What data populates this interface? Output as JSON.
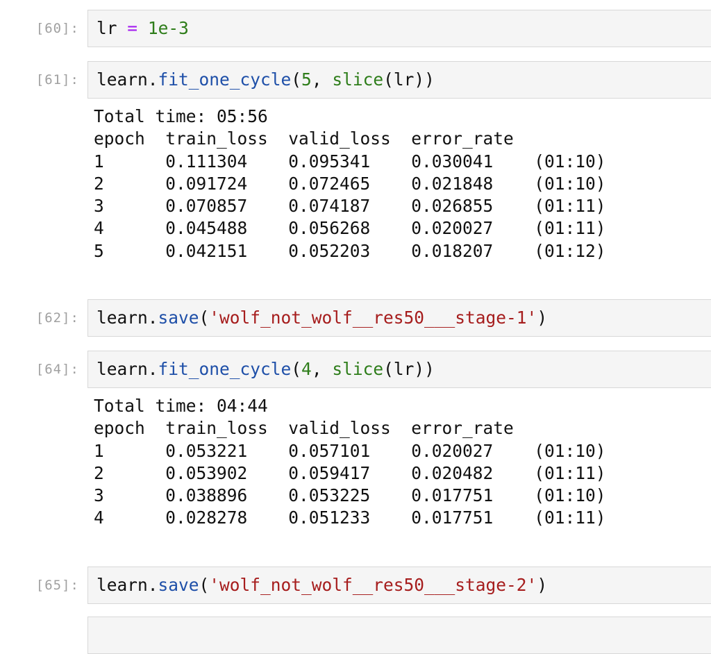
{
  "cells": [
    {
      "prompt": "[60]:",
      "code": {
        "var": "lr",
        "op": "=",
        "value": "1e-3"
      }
    },
    {
      "prompt": "[61]:",
      "code": {
        "obj": "learn.",
        "fn": "fit_one_cycle",
        "p1": "(",
        "arg": "5",
        "sep": ", ",
        "fn2": "slice",
        "rest": "(lr))"
      },
      "output": {
        "total_time": "Total time: 05:56",
        "headers": [
          "epoch",
          "train_loss",
          "valid_loss",
          "error_rate",
          ""
        ],
        "rows": [
          [
            "1",
            "0.111304",
            "0.095341",
            "0.030041",
            "(01:10)"
          ],
          [
            "2",
            "0.091724",
            "0.072465",
            "0.021848",
            "(01:10)"
          ],
          [
            "3",
            "0.070857",
            "0.074187",
            "0.026855",
            "(01:11)"
          ],
          [
            "4",
            "0.045488",
            "0.056268",
            "0.020027",
            "(01:11)"
          ],
          [
            "5",
            "0.042151",
            "0.052203",
            "0.018207",
            "(01:12)"
          ]
        ]
      }
    },
    {
      "prompt": "[62]:",
      "code": {
        "obj": "learn.",
        "fn": "save",
        "p1": "(",
        "str": "'wolf_not_wolf__res50___stage-1'",
        "p2": ")"
      }
    },
    {
      "prompt": "[64]:",
      "code": {
        "obj": "learn.",
        "fn": "fit_one_cycle",
        "p1": "(",
        "arg": "4",
        "sep": ", ",
        "fn2": "slice",
        "rest": "(lr))"
      },
      "output": {
        "total_time": "Total time: 04:44",
        "headers": [
          "epoch",
          "train_loss",
          "valid_loss",
          "error_rate",
          ""
        ],
        "rows": [
          [
            "1",
            "0.053221",
            "0.057101",
            "0.020027",
            "(01:10)"
          ],
          [
            "2",
            "0.053902",
            "0.059417",
            "0.020482",
            "(01:11)"
          ],
          [
            "3",
            "0.038896",
            "0.053225",
            "0.017751",
            "(01:10)"
          ],
          [
            "4",
            "0.028278",
            "0.051233",
            "0.017751",
            "(01:11)"
          ]
        ]
      }
    },
    {
      "prompt": "[65]:",
      "code": {
        "obj": "learn.",
        "fn": "save",
        "p1": "(",
        "str": "'wolf_not_wolf__res50___stage-2'",
        "p2": ")"
      }
    }
  ]
}
